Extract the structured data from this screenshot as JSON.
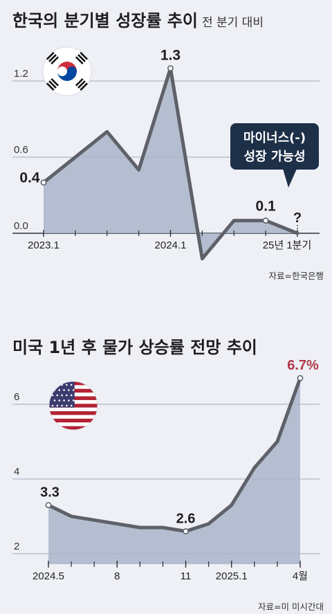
{
  "colors": {
    "background": "#eef0f6",
    "area_fill": "#a9b5c9",
    "line": "#5e6268",
    "axis": "#2b2f36",
    "grid": "#9fa8b8",
    "highlight": "#b03a48",
    "callout_bg": "#1e2f48",
    "callout_text": "#ffffff"
  },
  "charts": {
    "korea": {
      "title": "한국의 분기별 성장률 추이",
      "subtitle": "전 분기 대비",
      "source": "자료=한국은행",
      "flag_icon": "south-korea-flag-icon",
      "callout": {
        "line1": "마이너스(-)",
        "line2": "성장 가능성",
        "mark": "?"
      }
    },
    "us": {
      "title": "미국 1년 후 물가 상승률 전망 추이",
      "source": "자료=미 미시간대",
      "flag_icon": "us-flag-icon"
    }
  },
  "chart_data": [
    {
      "type": "area",
      "title": "한국의 분기별 성장률 추이",
      "subtitle": "전 분기 대비",
      "x": [
        "2023.1",
        "2023.2",
        "2023.3",
        "2023.4",
        "2024.1",
        "2024.2",
        "2024.3",
        "2024.4",
        "2025.1"
      ],
      "x_tick_labels": [
        {
          "index": 0,
          "label": "2023.1"
        },
        {
          "index": 4,
          "label": "2024.1"
        },
        {
          "index": 8,
          "label": "25년 1분기"
        }
      ],
      "values": [
        0.4,
        0.6,
        0.8,
        0.5,
        1.3,
        -0.2,
        0.1,
        0.1,
        0.0
      ],
      "ylim": [
        -0.2,
        1.4
      ],
      "y_ticks": [
        "0.0",
        "0.6",
        "1.2"
      ],
      "data_labels": [
        {
          "index": 0,
          "label": "0.4"
        },
        {
          "index": 4,
          "label": "1.3"
        },
        {
          "index": 7,
          "label": "0.1"
        }
      ],
      "grid": true
    },
    {
      "type": "area",
      "title": "미국 1년 후 물가 상승률 전망 추이",
      "x": [
        "2024.5",
        "2024.6",
        "2024.7",
        "2024.8",
        "2024.9",
        "2024.10",
        "2024.11",
        "2024.12",
        "2025.1",
        "2025.2",
        "2025.3",
        "2025.4"
      ],
      "x_tick_labels": [
        {
          "index": 0,
          "label": "2024.5"
        },
        {
          "index": 3,
          "label": "8"
        },
        {
          "index": 6,
          "label": "11"
        },
        {
          "index": 8,
          "label": "2025.1"
        },
        {
          "index": 11,
          "label": "4월"
        }
      ],
      "values": [
        3.3,
        3.0,
        2.9,
        2.8,
        2.7,
        2.7,
        2.6,
        2.8,
        3.3,
        4.3,
        5.0,
        6.7
      ],
      "ylim": [
        1.7,
        7.0
      ],
      "y_ticks": [
        "2",
        "4",
        "6"
      ],
      "data_labels": [
        {
          "index": 0,
          "label": "3.3"
        },
        {
          "index": 6,
          "label": "2.6"
        },
        {
          "index": 11,
          "label": "6.7%"
        }
      ],
      "grid": true
    }
  ]
}
